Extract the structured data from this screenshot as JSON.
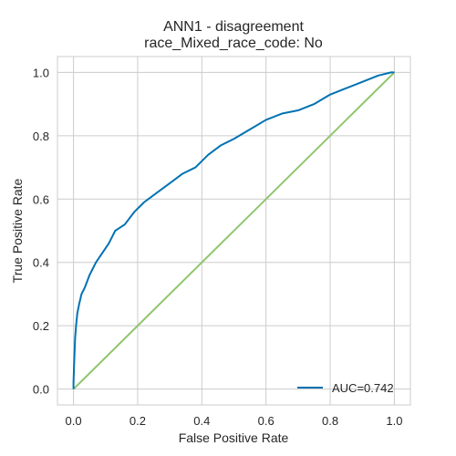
{
  "chart_data": {
    "type": "line",
    "title": "ANN1 - disagreement",
    "subtitle": "race_Mixed_race_code: No",
    "xlabel": "False Positive Rate",
    "ylabel": "True Positive Rate",
    "xlim": [
      -0.05,
      1.05
    ],
    "ylim": [
      -0.05,
      1.05
    ],
    "xticks": [
      "0.0",
      "0.2",
      "0.4",
      "0.6",
      "0.8",
      "1.0"
    ],
    "yticks": [
      "0.0",
      "0.2",
      "0.4",
      "0.6",
      "0.8",
      "1.0"
    ],
    "grid": true,
    "legend_position": "bottom-right",
    "series": [
      {
        "name": "AUC=0.742",
        "color": "#0072b2",
        "x": [
          0.0,
          0.0,
          0.002,
          0.005,
          0.008,
          0.012,
          0.018,
          0.025,
          0.035,
          0.05,
          0.07,
          0.09,
          0.11,
          0.13,
          0.16,
          0.19,
          0.22,
          0.26,
          0.3,
          0.34,
          0.38,
          0.42,
          0.46,
          0.5,
          0.55,
          0.6,
          0.65,
          0.7,
          0.75,
          0.8,
          0.85,
          0.9,
          0.95,
          0.99,
          1.0
        ],
        "y": [
          0.0,
          0.02,
          0.08,
          0.16,
          0.2,
          0.24,
          0.27,
          0.3,
          0.32,
          0.36,
          0.4,
          0.43,
          0.46,
          0.5,
          0.52,
          0.56,
          0.59,
          0.62,
          0.65,
          0.68,
          0.7,
          0.74,
          0.77,
          0.79,
          0.82,
          0.85,
          0.87,
          0.88,
          0.9,
          0.93,
          0.95,
          0.97,
          0.99,
          1.0,
          1.0
        ]
      },
      {
        "name": "",
        "color": "#8fc66e",
        "x": [
          0.0,
          1.0
        ],
        "y": [
          0.0,
          1.0
        ]
      }
    ]
  }
}
